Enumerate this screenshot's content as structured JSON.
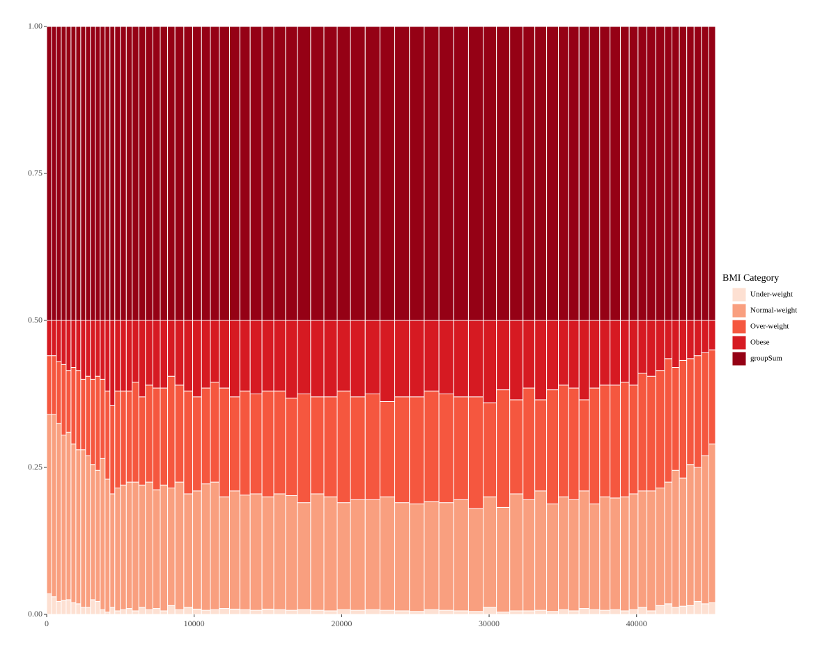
{
  "chart_data": {
    "type": "histogram",
    "stacked": true,
    "legend_title": "BMI Category",
    "legend": "right",
    "grid": false,
    "xlim": [
      0,
      45350
    ],
    "ylim": [
      0,
      1
    ],
    "xticks": [
      0,
      10000,
      20000,
      30000,
      40000
    ],
    "yticks": [
      {
        "value": 0,
        "label": "0.00"
      },
      {
        "value": 0.25,
        "label": "0.25"
      },
      {
        "value": 0.5,
        "label": "0.50"
      },
      {
        "value": 0.75,
        "label": "0.75"
      },
      {
        "value": 1,
        "label": "1.00"
      }
    ],
    "bins": [
      0,
      330,
      660,
      990,
      1320,
      1650,
      1980,
      2310,
      2640,
      2970,
      3300,
      3630,
      3960,
      4290,
      4620,
      5000,
      5400,
      5800,
      6250,
      6700,
      7200,
      7700,
      8200,
      8700,
      9300,
      9900,
      10500,
      11100,
      11700,
      12400,
      13100,
      13800,
      14600,
      15400,
      16200,
      17000,
      17900,
      18800,
      19700,
      20600,
      21600,
      22600,
      23600,
      24600,
      25600,
      26600,
      27600,
      28600,
      29600,
      30500,
      31400,
      32300,
      33100,
      33900,
      34700,
      35400,
      36100,
      36800,
      37500,
      38200,
      38900,
      39500,
      40100,
      40700,
      41300,
      41900,
      42400,
      42900,
      43400,
      43900,
      44400,
      44900,
      45350
    ],
    "series": [
      {
        "name": "Under-weight",
        "color": "#fde0d2",
        "values": [
          0.035,
          0.03,
          0.022,
          0.024,
          0.025,
          0.02,
          0.018,
          0.012,
          0.012,
          0.025,
          0.022,
          0.008,
          0.004,
          0.012,
          0.006,
          0.008,
          0.01,
          0.006,
          0.012,
          0.008,
          0.01,
          0.006,
          0.015,
          0.008,
          0.012,
          0.009,
          0.007,
          0.008,
          0.01,
          0.009,
          0.008,
          0.007,
          0.009,
          0.008,
          0.007,
          0.008,
          0.007,
          0.006,
          0.008,
          0.007,
          0.008,
          0.007,
          0.006,
          0.005,
          0.008,
          0.007,
          0.006,
          0.005,
          0.012,
          0.004,
          0.006,
          0.006,
          0.007,
          0.005,
          0.008,
          0.006,
          0.01,
          0.008,
          0.007,
          0.008,
          0.006,
          0.008,
          0.012,
          0.006,
          0.015,
          0.018,
          0.012,
          0.014,
          0.015,
          0.022,
          0.018,
          0.02
        ]
      },
      {
        "name": "Normal-weight",
        "color": "#f99f7f",
        "values": [
          0.305,
          0.31,
          0.303,
          0.281,
          0.285,
          0.27,
          0.262,
          0.268,
          0.258,
          0.23,
          0.223,
          0.257,
          0.226,
          0.193,
          0.209,
          0.212,
          0.215,
          0.219,
          0.208,
          0.217,
          0.202,
          0.214,
          0.2,
          0.217,
          0.193,
          0.201,
          0.215,
          0.217,
          0.19,
          0.201,
          0.195,
          0.198,
          0.191,
          0.197,
          0.195,
          0.182,
          0.198,
          0.194,
          0.182,
          0.188,
          0.187,
          0.193,
          0.184,
          0.183,
          0.184,
          0.183,
          0.189,
          0.175,
          0.188,
          0.178,
          0.199,
          0.189,
          0.203,
          0.183,
          0.192,
          0.189,
          0.2,
          0.18,
          0.193,
          0.19,
          0.194,
          0.197,
          0.198,
          0.204,
          0.2,
          0.207,
          0.233,
          0.218,
          0.24,
          0.228,
          0.252,
          0.27
        ]
      },
      {
        "name": "Over-weight",
        "color": "#f5573f",
        "values": [
          0.1,
          0.1,
          0.105,
          0.12,
          0.105,
          0.13,
          0.135,
          0.12,
          0.135,
          0.145,
          0.16,
          0.135,
          0.15,
          0.15,
          0.165,
          0.16,
          0.155,
          0.17,
          0.15,
          0.165,
          0.173,
          0.165,
          0.19,
          0.165,
          0.175,
          0.16,
          0.163,
          0.17,
          0.185,
          0.16,
          0.177,
          0.17,
          0.18,
          0.175,
          0.166,
          0.185,
          0.165,
          0.17,
          0.19,
          0.175,
          0.18,
          0.162,
          0.18,
          0.182,
          0.188,
          0.185,
          0.175,
          0.19,
          0.16,
          0.2,
          0.16,
          0.19,
          0.155,
          0.194,
          0.19,
          0.19,
          0.155,
          0.197,
          0.19,
          0.192,
          0.195,
          0.185,
          0.2,
          0.195,
          0.2,
          0.21,
          0.175,
          0.2,
          0.18,
          0.19,
          0.175,
          0.16
        ]
      },
      {
        "name": "Obese",
        "color": "#d61a22",
        "values": [
          0.06,
          0.06,
          0.07,
          0.075,
          0.085,
          0.08,
          0.085,
          0.1,
          0.095,
          0.1,
          0.095,
          0.1,
          0.12,
          0.145,
          0.12,
          0.12,
          0.12,
          0.105,
          0.13,
          0.11,
          0.115,
          0.115,
          0.095,
          0.11,
          0.12,
          0.13,
          0.115,
          0.105,
          0.115,
          0.13,
          0.12,
          0.125,
          0.12,
          0.12,
          0.132,
          0.125,
          0.13,
          0.13,
          0.12,
          0.13,
          0.125,
          0.138,
          0.13,
          0.13,
          0.12,
          0.125,
          0.13,
          0.13,
          0.14,
          0.118,
          0.135,
          0.115,
          0.135,
          0.118,
          0.11,
          0.115,
          0.135,
          0.115,
          0.11,
          0.11,
          0.105,
          0.11,
          0.09,
          0.095,
          0.085,
          0.065,
          0.08,
          0.068,
          0.065,
          0.06,
          0.055,
          0.05
        ]
      },
      {
        "name": "groupSum",
        "color": "#950115",
        "values": [
          0.5,
          0.5,
          0.5,
          0.5,
          0.5,
          0.5,
          0.5,
          0.5,
          0.5,
          0.5,
          0.5,
          0.5,
          0.5,
          0.5,
          0.5,
          0.5,
          0.5,
          0.5,
          0.5,
          0.5,
          0.5,
          0.5,
          0.5,
          0.5,
          0.5,
          0.5,
          0.5,
          0.5,
          0.5,
          0.5,
          0.5,
          0.5,
          0.5,
          0.5,
          0.5,
          0.5,
          0.5,
          0.5,
          0.5,
          0.5,
          0.5,
          0.5,
          0.5,
          0.5,
          0.5,
          0.5,
          0.5,
          0.5,
          0.5,
          0.5,
          0.5,
          0.5,
          0.5,
          0.5,
          0.5,
          0.5,
          0.5,
          0.5,
          0.5,
          0.5,
          0.5,
          0.5,
          0.5,
          0.5,
          0.5,
          0.5,
          0.5,
          0.5,
          0.5,
          0.5,
          0.5,
          0.5
        ]
      }
    ]
  }
}
